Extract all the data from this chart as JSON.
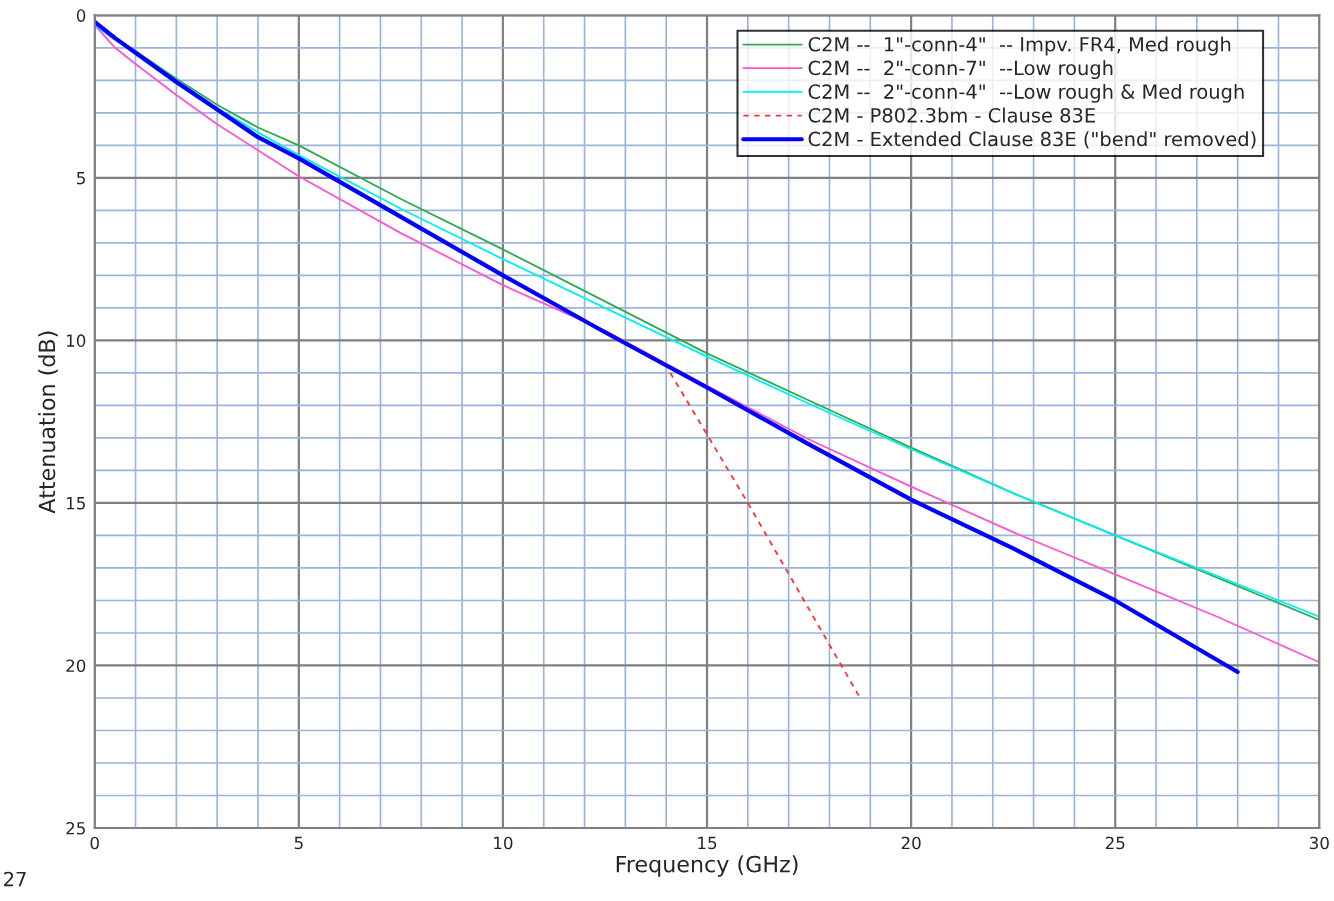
{
  "chart_data": {
    "type": "line",
    "xlabel": "Frequency (GHz)",
    "ylabel": "Attenuation (dB)",
    "xlim": [
      0,
      30
    ],
    "ylim": [
      25,
      0
    ],
    "xticks": [
      0,
      {
        "value": 1,
        "label": null
      },
      {
        "value": 2,
        "label": null
      },
      {
        "value": 3,
        "label": null
      },
      {
        "value": 4,
        "label": null
      },
      5,
      {
        "value": 6,
        "label": null
      },
      {
        "value": 7,
        "label": null
      },
      {
        "value": 8,
        "label": null
      },
      {
        "value": 9,
        "label": null
      },
      10,
      {
        "value": 11,
        "label": null
      },
      {
        "value": 12,
        "label": null
      },
      {
        "value": 13,
        "label": null
      },
      {
        "value": 14,
        "label": null
      },
      15,
      {
        "value": 16,
        "label": null
      },
      {
        "value": 17,
        "label": null
      },
      {
        "value": 18,
        "label": null
      },
      {
        "value": 19,
        "label": null
      },
      20,
      {
        "value": 21,
        "label": null
      },
      {
        "value": 22,
        "label": null
      },
      {
        "value": 23,
        "label": null
      },
      {
        "value": 24,
        "label": null
      },
      25,
      {
        "value": 26,
        "label": null
      },
      {
        "value": 27,
        "label": null
      },
      {
        "value": 28,
        "label": null
      },
      {
        "value": 29,
        "label": null
      },
      30
    ],
    "yticks": [
      0,
      {
        "value": 1,
        "label": null
      },
      {
        "value": 2,
        "label": null
      },
      {
        "value": 3,
        "label": null
      },
      {
        "value": 4,
        "label": null
      },
      5,
      {
        "value": 6,
        "label": null
      },
      {
        "value": 7,
        "label": null
      },
      {
        "value": 8,
        "label": null
      },
      {
        "value": 9,
        "label": null
      },
      10,
      {
        "value": 11,
        "label": null
      },
      {
        "value": 12,
        "label": null
      },
      {
        "value": 13,
        "label": null
      },
      {
        "value": 14,
        "label": null
      },
      15,
      {
        "value": 16,
        "label": null
      },
      {
        "value": 17,
        "label": null
      },
      {
        "value": 18,
        "label": null
      },
      {
        "value": 19,
        "label": null
      },
      20,
      {
        "value": 21,
        "label": null
      },
      {
        "value": 22,
        "label": null
      },
      {
        "value": 23,
        "label": null
      },
      {
        "value": 24,
        "label": null
      },
      25
    ],
    "grid": true,
    "legend": "top right",
    "marker": "none",
    "annotations": [
      "27"
    ],
    "series": [
      {
        "name": "C2M --  1\"-conn-4\"  -- Impv. FR4, Med rough",
        "color": "#2eaa50",
        "line_style": "solid",
        "x": [
          0,
          0.5,
          1,
          2,
          3,
          4,
          5,
          7.5,
          10,
          12.5,
          15,
          17.5,
          20,
          22.5,
          25,
          27.5,
          30
        ],
        "values": [
          0.3,
          0.75,
          1.1,
          1.95,
          2.75,
          3.45,
          4.0,
          5.65,
          7.2,
          8.8,
          10.4,
          11.85,
          13.3,
          14.7,
          16.0,
          17.3,
          18.6
        ]
      },
      {
        "name": "C2M --  2\"-conn-7\"  --Low rough",
        "color": "#ff55cc",
        "line_style": "solid",
        "x": [
          0,
          0.5,
          1,
          2,
          3,
          4,
          5,
          7.5,
          10,
          12.5,
          15,
          17.5,
          20,
          22.5,
          25,
          27.5,
          30
        ],
        "values": [
          0.3,
          1.0,
          1.5,
          2.45,
          3.35,
          4.15,
          4.95,
          6.7,
          8.3,
          9.7,
          11.4,
          13.05,
          14.5,
          15.9,
          17.2,
          18.5,
          19.9
        ]
      },
      {
        "name": "C2M --  2\"-conn-4\"  --Low rough & Med rough",
        "color": "#00f0f0",
        "line_style": "solid",
        "x": [
          0,
          0.5,
          1,
          2,
          3,
          4,
          5,
          7.5,
          10,
          12.5,
          15,
          17.5,
          20,
          22.5,
          25,
          27.5,
          30
        ],
        "values": [
          0.3,
          0.75,
          1.12,
          2.0,
          2.85,
          3.6,
          4.3,
          5.95,
          7.5,
          9.0,
          10.5,
          11.95,
          13.35,
          14.7,
          16.0,
          17.25,
          18.5
        ]
      },
      {
        "name": "C2M - P802.3bm - Clause 83E",
        "color": "#ff3030",
        "line_style": "dashed",
        "x": [
          14.1,
          16,
          18.75
        ],
        "values": [
          11.0,
          15.0,
          21.0
        ]
      },
      {
        "name": "C2M - Extended Clause 83E (\"bend\" removed)",
        "color": "#0000ff",
        "line_style": "solid",
        "x": [
          0,
          0.5,
          1,
          2,
          3,
          4,
          5,
          7.5,
          10,
          12.5,
          15,
          17.5,
          20,
          22.5,
          25,
          28
        ],
        "values": [
          0.2,
          0.7,
          1.15,
          2.05,
          2.9,
          3.75,
          4.4,
          6.2,
          8.0,
          9.75,
          11.45,
          13.2,
          14.9,
          16.4,
          18.0,
          20.2
        ]
      }
    ]
  }
}
